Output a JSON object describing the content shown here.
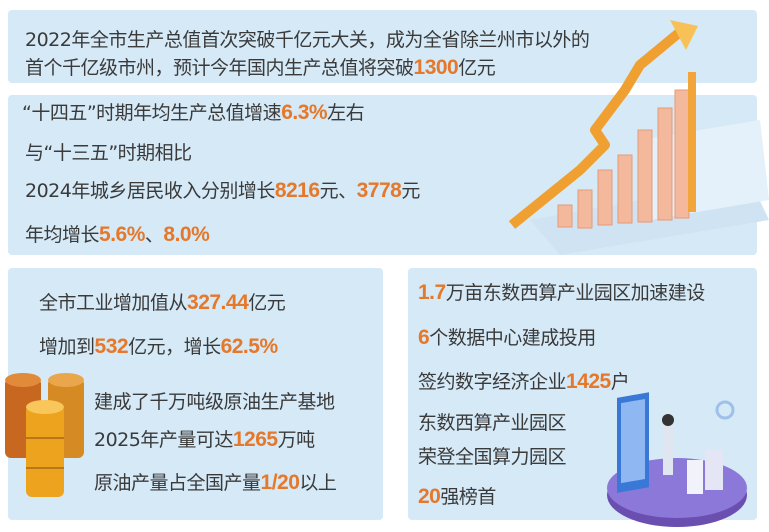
{
  "colors": {
    "panel": "#d5e9f7",
    "highlight": "#e5782a",
    "text": "#3a3a3a"
  },
  "icons": [
    "growth-chart-arrow-illustration",
    "oil-barrels-icon",
    "data-center-person-illustration"
  ],
  "panel1": {
    "lines": [
      [
        {
          "t": "2022年全市生产总值首次突破千亿元大关，成为全省除兰州市以外的",
          "h": false
        }
      ],
      [
        {
          "t": "首个千亿级市州，预计今年国内生产总值将突破",
          "h": false
        },
        {
          "t": "1300",
          "h": true
        },
        {
          "t": "亿元",
          "h": false
        }
      ]
    ]
  },
  "panel2": {
    "lines": [
      [
        {
          "t": "“十四五”时期年均生产总值增速",
          "h": false
        },
        {
          "t": "6.3%",
          "h": true
        },
        {
          "t": "左右",
          "h": false
        }
      ],
      [
        {
          "t": "与“十三五”时期相比",
          "h": false
        }
      ],
      [
        {
          "t": "2024年城乡居民收入分别增长",
          "h": false
        },
        {
          "t": "8216",
          "h": true
        },
        {
          "t": "元、",
          "h": false
        },
        {
          "t": "3778",
          "h": true
        },
        {
          "t": "元",
          "h": false
        }
      ],
      [
        {
          "t": "年均增长",
          "h": false
        },
        {
          "t": "5.6%",
          "h": true
        },
        {
          "t": "、",
          "h": false
        },
        {
          "t": "8.0%",
          "h": true
        }
      ]
    ]
  },
  "panel3": {
    "lines": [
      [
        {
          "t": "全市工业增加值从",
          "h": false
        },
        {
          "t": "327.44",
          "h": true
        },
        {
          "t": "亿元",
          "h": false
        }
      ],
      [
        {
          "t": "增加到",
          "h": false
        },
        {
          "t": "532",
          "h": true
        },
        {
          "t": "亿元，增长",
          "h": false
        },
        {
          "t": "62.5%",
          "h": true
        }
      ],
      [
        {
          "t": "建成了千万吨级原油生产基地",
          "h": false
        }
      ],
      [
        {
          "t": "2025年产量可达",
          "h": false
        },
        {
          "t": "1265",
          "h": true
        },
        {
          "t": "万吨",
          "h": false
        }
      ],
      [
        {
          "t": "原油产量占全国产量",
          "h": false
        },
        {
          "t": "1/20",
          "h": true
        },
        {
          "t": "以上",
          "h": false
        }
      ]
    ]
  },
  "panel4": {
    "lines": [
      [
        {
          "t": "1.7",
          "h": true
        },
        {
          "t": "万亩东数西算产业园区加速建设",
          "h": false
        }
      ],
      [
        {
          "t": "6",
          "h": true
        },
        {
          "t": "个数据中心建成投用",
          "h": false
        }
      ],
      [
        {
          "t": "签约数字经济企业",
          "h": false
        },
        {
          "t": "1425",
          "h": true
        },
        {
          "t": "户",
          "h": false
        }
      ],
      [
        {
          "t": "东数西算产业园区",
          "h": false
        }
      ],
      [
        {
          "t": "荣登全国算力园区",
          "h": false
        }
      ],
      [
        {
          "t": "20",
          "h": true
        },
        {
          "t": "强榜首",
          "h": false
        }
      ]
    ]
  }
}
